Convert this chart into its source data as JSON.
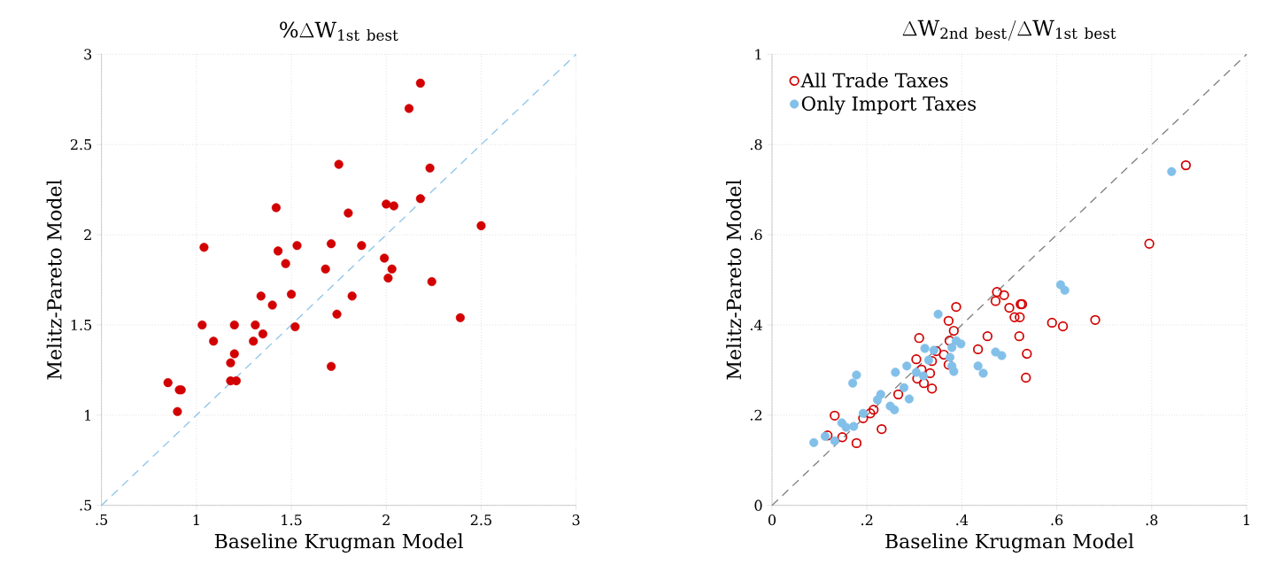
{
  "chart_data": [
    {
      "type": "scatter",
      "title": "\\%\\Delta \\mathrm{W}_{\\mathrm{1st\\ best}}",
      "xlabel": "Baseline Krugman Model",
      "ylabel": "Melitz-Pareto Model",
      "xlim": [
        0.5,
        3
      ],
      "ylim": [
        0.5,
        3
      ],
      "xticks": [
        {
          "value": 0.5,
          "label": ".5"
        },
        1,
        1.5,
        2,
        2.5,
        3
      ],
      "yticks": [
        {
          "value": 0.5,
          "label": ".5"
        },
        1,
        1.5,
        2,
        2.5,
        3
      ],
      "grid": true,
      "legend": false,
      "series": [
        {
          "marker": "circle",
          "color": "#d20000",
          "x": [
            2.18,
            2.12,
            1.75,
            2.23,
            2.18,
            1.42,
            2.0,
            2.04,
            1.8,
            2.5,
            1.04,
            1.43,
            1.53,
            1.71,
            1.87,
            1.99,
            2.03,
            2.01,
            2.24,
            1.47,
            1.68,
            1.34,
            1.5,
            1.82,
            1.4,
            1.74,
            2.39,
            1.03,
            1.2,
            1.31,
            1.52,
            1.35,
            1.09,
            1.3,
            1.2,
            1.18,
            1.71,
            1.18,
            1.21,
            0.85,
            0.91,
            0.92,
            0.9
          ],
          "values": [
            2.84,
            2.7,
            2.39,
            2.37,
            2.2,
            2.15,
            2.17,
            2.16,
            2.12,
            2.05,
            1.93,
            1.91,
            1.94,
            1.95,
            1.94,
            1.87,
            1.81,
            1.76,
            1.74,
            1.84,
            1.81,
            1.66,
            1.67,
            1.66,
            1.61,
            1.56,
            1.54,
            1.5,
            1.5,
            1.5,
            1.49,
            1.45,
            1.41,
            1.41,
            1.34,
            1.29,
            1.27,
            1.19,
            1.19,
            1.18,
            1.14,
            1.14,
            1.02
          ]
        },
        {
          "type": "line",
          "line_style": "dashed",
          "color": "#8ec5ea",
          "x": [
            0.5,
            3
          ],
          "values": [
            0.5,
            3
          ]
        }
      ]
    },
    {
      "type": "scatter",
      "title": "\\Delta \\mathrm{W}_{\\mathrm{2nd\\ best}}/\\Delta \\mathrm{W}_{\\mathrm{1st\\ best}}",
      "xlabel": "Baseline Krugman Model",
      "ylabel": "Melitz-Pareto Model",
      "xlim": [
        0,
        1
      ],
      "ylim": [
        0,
        1
      ],
      "xticks": [
        0,
        {
          "value": 0.2,
          "label": ".2"
        },
        {
          "value": 0.4,
          "label": ".4"
        },
        {
          "value": 0.6,
          "label": ".6"
        },
        {
          "value": 0.8,
          "label": ".8"
        },
        1
      ],
      "yticks": [
        0,
        {
          "value": 0.2,
          "label": ".2"
        },
        {
          "value": 0.4,
          "label": ".4"
        },
        {
          "value": 0.6,
          "label": ".6"
        },
        {
          "value": 0.8,
          "label": ".8"
        },
        1
      ],
      "grid": true,
      "legend": "top left",
      "series": [
        {
          "name": "All Trade Taxes",
          "marker": "circle-open",
          "color": "#d20000",
          "x": [
            0.872,
            0.795,
            0.59,
            0.613,
            0.681,
            0.474,
            0.489,
            0.471,
            0.388,
            0.5,
            0.524,
            0.527,
            0.511,
            0.522,
            0.372,
            0.383,
            0.454,
            0.521,
            0.31,
            0.374,
            0.434,
            0.537,
            0.346,
            0.362,
            0.304,
            0.337,
            0.372,
            0.315,
            0.333,
            0.306,
            0.535,
            0.32,
            0.337,
            0.266,
            0.214,
            0.207,
            0.132,
            0.192,
            0.231,
            0.117,
            0.148,
            0.178
          ],
          "values": [
            0.754,
            0.58,
            0.405,
            0.397,
            0.411,
            0.473,
            0.466,
            0.453,
            0.44,
            0.438,
            0.446,
            0.446,
            0.417,
            0.417,
            0.409,
            0.387,
            0.375,
            0.375,
            0.371,
            0.365,
            0.346,
            0.336,
            0.342,
            0.334,
            0.324,
            0.32,
            0.312,
            0.301,
            0.293,
            0.281,
            0.283,
            0.271,
            0.259,
            0.246,
            0.212,
            0.204,
            0.199,
            0.193,
            0.169,
            0.155,
            0.151,
            0.138
          ]
        },
        {
          "name": "Only Import Taxes",
          "marker": "circle",
          "color": "#82c0e9",
          "x": [
            0.842,
            0.608,
            0.617,
            0.35,
            0.322,
            0.341,
            0.379,
            0.388,
            0.398,
            0.33,
            0.375,
            0.379,
            0.383,
            0.434,
            0.445,
            0.471,
            0.484,
            0.284,
            0.304,
            0.319,
            0.26,
            0.178,
            0.17,
            0.278,
            0.289,
            0.229,
            0.222,
            0.249,
            0.258,
            0.192,
            0.147,
            0.156,
            0.172,
            0.112,
            0.132,
            0.088
          ],
          "values": [
            0.74,
            0.489,
            0.477,
            0.424,
            0.348,
            0.344,
            0.35,
            0.365,
            0.358,
            0.322,
            0.328,
            0.309,
            0.297,
            0.309,
            0.293,
            0.34,
            0.332,
            0.309,
            0.295,
            0.287,
            0.295,
            0.289,
            0.271,
            0.261,
            0.236,
            0.246,
            0.234,
            0.22,
            0.212,
            0.204,
            0.183,
            0.173,
            0.175,
            0.153,
            0.143,
            0.139
          ]
        },
        {
          "type": "line",
          "line_style": "dashed",
          "color": "#808080",
          "x": [
            0,
            1
          ],
          "values": [
            0,
            1
          ]
        }
      ]
    }
  ]
}
